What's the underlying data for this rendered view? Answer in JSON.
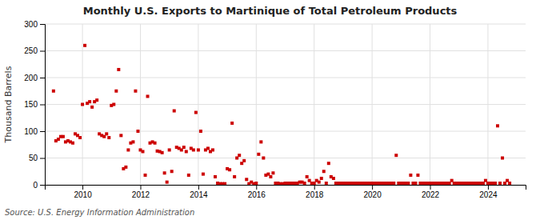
{
  "chart_data": {
    "type": "scatter",
    "title": "Monthly U.S. Exports to Martinique of Total Petroleum Products",
    "y_label": "Thousand Barrels",
    "source": "Source: U.S. Energy Information Administration",
    "color": "#cc0000",
    "marker": "square",
    "grid": true,
    "xlim": [
      2008.7,
      2025.3
    ],
    "xticks": [
      2010,
      2012,
      2014,
      2016,
      2018,
      2020,
      2022,
      2024
    ],
    "ylim": [
      0,
      300
    ],
    "yticks": [
      0,
      50,
      100,
      150,
      200,
      250,
      300
    ],
    "x": [
      2009.0,
      2009.083,
      2009.167,
      2009.25,
      2009.333,
      2009.417,
      2009.5,
      2009.583,
      2009.667,
      2009.75,
      2009.833,
      2009.917,
      2010.0,
      2010.083,
      2010.167,
      2010.25,
      2010.333,
      2010.417,
      2010.5,
      2010.583,
      2010.667,
      2010.75,
      2010.833,
      2010.917,
      2011.0,
      2011.083,
      2011.167,
      2011.25,
      2011.333,
      2011.417,
      2011.5,
      2011.583,
      2011.667,
      2011.75,
      2011.833,
      2011.917,
      2012.0,
      2012.083,
      2012.167,
      2012.25,
      2012.333,
      2012.417,
      2012.5,
      2012.583,
      2012.667,
      2012.75,
      2012.833,
      2012.917,
      2013.0,
      2013.083,
      2013.167,
      2013.25,
      2013.333,
      2013.417,
      2013.5,
      2013.583,
      2013.667,
      2013.75,
      2013.833,
      2013.917,
      2014.0,
      2014.083,
      2014.167,
      2014.25,
      2014.333,
      2014.417,
      2014.5,
      2014.583,
      2014.667,
      2014.75,
      2014.833,
      2014.917,
      2015.0,
      2015.083,
      2015.167,
      2015.25,
      2015.333,
      2015.417,
      2015.5,
      2015.583,
      2015.667,
      2015.75,
      2015.833,
      2015.917,
      2016.0,
      2016.083,
      2016.167,
      2016.25,
      2016.333,
      2016.417,
      2016.5,
      2016.583,
      2016.667,
      2016.75,
      2016.833,
      2016.917,
      2017.0,
      2017.083,
      2017.167,
      2017.25,
      2017.333,
      2017.417,
      2017.5,
      2017.583,
      2017.667,
      2017.75,
      2017.833,
      2017.917,
      2018.0,
      2018.083,
      2018.167,
      2018.25,
      2018.333,
      2018.417,
      2018.5,
      2018.583,
      2018.667,
      2018.75,
      2018.833,
      2018.917,
      2019.0,
      2019.083,
      2019.167,
      2019.25,
      2019.333,
      2019.417,
      2019.5,
      2019.583,
      2019.667,
      2019.75,
      2019.833,
      2019.917,
      2020.0,
      2020.083,
      2020.167,
      2020.25,
      2020.333,
      2020.417,
      2020.5,
      2020.583,
      2020.667,
      2020.75,
      2020.833,
      2020.917,
      2021.0,
      2021.083,
      2021.167,
      2021.25,
      2021.333,
      2021.417,
      2021.5,
      2021.583,
      2021.667,
      2021.75,
      2021.833,
      2021.917,
      2022.0,
      2022.083,
      2022.167,
      2022.25,
      2022.333,
      2022.417,
      2022.5,
      2022.583,
      2022.667,
      2022.75,
      2022.833,
      2022.917,
      2023.0,
      2023.083,
      2023.167,
      2023.25,
      2023.333,
      2023.417,
      2023.5,
      2023.583,
      2023.667,
      2023.75,
      2023.833,
      2023.917,
      2024.0,
      2024.083,
      2024.167,
      2024.25,
      2024.333,
      2024.417,
      2024.5,
      2024.583,
      2024.667,
      2024.75
    ],
    "values": [
      175,
      82,
      85,
      90,
      90,
      80,
      82,
      80,
      78,
      95,
      92,
      88,
      150,
      260,
      152,
      155,
      145,
      155,
      158,
      95,
      92,
      90,
      95,
      88,
      148,
      150,
      175,
      215,
      92,
      30,
      33,
      65,
      78,
      80,
      175,
      100,
      65,
      62,
      18,
      165,
      78,
      80,
      78,
      63,
      62,
      60,
      22,
      5,
      65,
      25,
      138,
      70,
      68,
      65,
      70,
      62,
      18,
      68,
      65,
      135,
      65,
      100,
      20,
      65,
      68,
      62,
      65,
      15,
      3,
      2,
      2,
      2,
      30,
      28,
      115,
      15,
      50,
      55,
      40,
      45,
      10,
      2,
      5,
      2,
      3,
      57,
      80,
      50,
      18,
      20,
      15,
      22,
      3,
      3,
      2,
      2,
      3,
      3,
      3,
      3,
      3,
      3,
      5,
      5,
      3,
      15,
      8,
      3,
      3,
      8,
      5,
      12,
      25,
      3,
      40,
      15,
      12,
      3,
      3,
      3,
      3,
      3,
      3,
      3,
      3,
      3,
      3,
      3,
      3,
      3,
      3,
      3,
      3,
      3,
      3,
      3,
      3,
      3,
      3,
      3,
      3,
      3,
      55,
      3,
      3,
      3,
      3,
      3,
      18,
      3,
      3,
      18,
      3,
      3,
      3,
      3,
      3,
      3,
      3,
      3,
      3,
      3,
      3,
      3,
      3,
      8,
      3,
      3,
      3,
      3,
      3,
      3,
      3,
      3,
      3,
      3,
      3,
      3,
      3,
      8,
      3,
      3,
      3,
      3,
      110,
      3,
      50,
      3,
      8,
      3
    ]
  }
}
